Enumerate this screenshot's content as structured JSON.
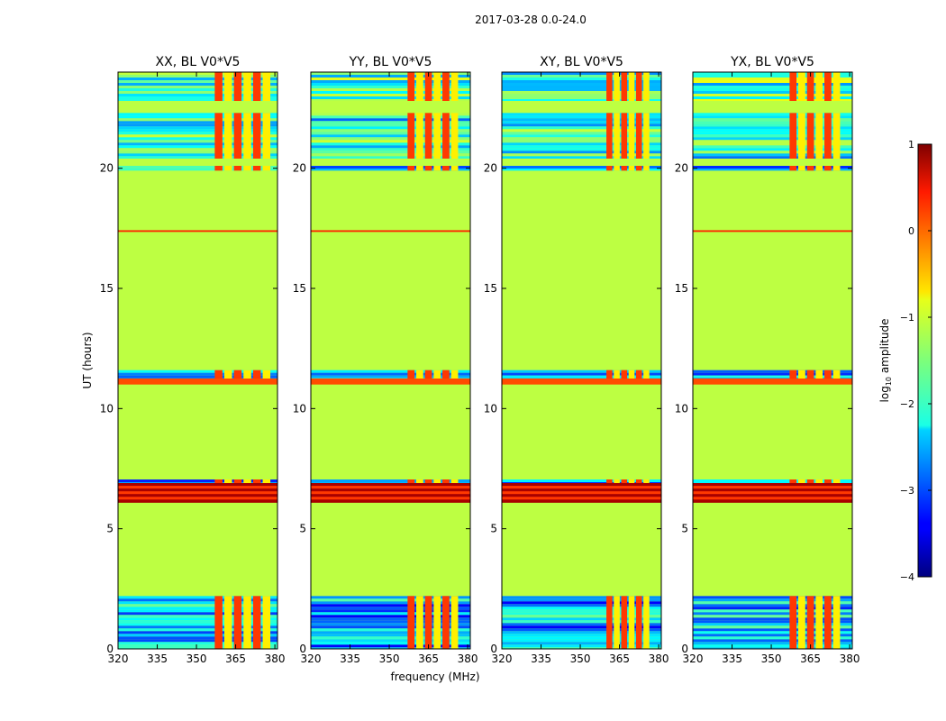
{
  "figure": {
    "suptitle": "2017-03-28 0.0-24.0",
    "xlabel": "frequency (MHz)",
    "ylabel": "UT (hours)"
  },
  "chart_data": [
    {
      "type": "heatmap",
      "title": "XX, BL V0*V5",
      "xlim": [
        320,
        381
      ],
      "ylim": [
        0,
        24
      ],
      "xticks": [
        320,
        335,
        350,
        365,
        380
      ],
      "yticks": [
        0,
        5,
        10,
        15,
        20
      ],
      "rfi_band_mhz": [
        357,
        379
      ],
      "background_log10_amplitude": -1.2,
      "bands": [
        {
          "from": 0.0,
          "to": 2.2,
          "log10_amplitude": -2.5,
          "kind": "noisy",
          "rfi": true
        },
        {
          "from": 6.1,
          "to": 6.9,
          "log10_amplitude": 0.8,
          "kind": "strong"
        },
        {
          "from": 6.9,
          "to": 7.05,
          "log10_amplitude": -2.5,
          "kind": "noisy",
          "rfi": true
        },
        {
          "from": 11.0,
          "to": 11.25,
          "log10_amplitude": 0.0,
          "kind": "flat"
        },
        {
          "from": 11.25,
          "to": 11.6,
          "log10_amplitude": -2.5,
          "kind": "noisy",
          "rfi": true
        },
        {
          "from": 17.35,
          "to": 17.42,
          "log10_amplitude": 0.2,
          "kind": "line"
        },
        {
          "from": 19.9,
          "to": 20.1,
          "log10_amplitude": -2.5,
          "kind": "noisy",
          "rfi": true
        },
        {
          "from": 20.4,
          "to": 22.3,
          "log10_amplitude": -2.0,
          "kind": "noisy",
          "rfi": true
        },
        {
          "from": 22.8,
          "to": 24.0,
          "log10_amplitude": -1.8,
          "kind": "noisy",
          "rfi": true
        }
      ]
    },
    {
      "type": "heatmap",
      "title": "YY, BL V0*V5",
      "xlim": [
        320,
        381
      ],
      "ylim": [
        0,
        24
      ],
      "xticks": [
        320,
        335,
        350,
        365,
        380
      ],
      "yticks": [
        0,
        5,
        10,
        15,
        20
      ],
      "rfi_band_mhz": [
        357,
        377
      ],
      "background_log10_amplitude": -1.2,
      "bands": [
        {
          "from": 0.0,
          "to": 2.2,
          "log10_amplitude": -2.5,
          "kind": "noisy",
          "rfi": true
        },
        {
          "from": 6.1,
          "to": 6.9,
          "log10_amplitude": 0.8,
          "kind": "strong"
        },
        {
          "from": 6.9,
          "to": 7.05,
          "log10_amplitude": -2.5,
          "kind": "noisy",
          "rfi": true
        },
        {
          "from": 11.0,
          "to": 11.25,
          "log10_amplitude": 0.0,
          "kind": "flat"
        },
        {
          "from": 11.25,
          "to": 11.6,
          "log10_amplitude": -2.5,
          "kind": "noisy",
          "rfi": true
        },
        {
          "from": 17.35,
          "to": 17.42,
          "log10_amplitude": 0.2,
          "kind": "line"
        },
        {
          "from": 19.9,
          "to": 20.1,
          "log10_amplitude": -2.5,
          "kind": "noisy",
          "rfi": true
        },
        {
          "from": 20.4,
          "to": 22.3,
          "log10_amplitude": -2.0,
          "kind": "noisy",
          "rfi": true
        },
        {
          "from": 22.8,
          "to": 24.0,
          "log10_amplitude": -1.8,
          "kind": "noisy",
          "rfi": true
        }
      ]
    },
    {
      "type": "heatmap",
      "title": "XY, BL V0*V5",
      "xlim": [
        320,
        381
      ],
      "ylim": [
        0,
        24
      ],
      "xticks": [
        320,
        335,
        350,
        365,
        380
      ],
      "yticks": [
        0,
        5,
        10,
        15,
        20
      ],
      "rfi_band_mhz": [
        360,
        377
      ],
      "background_log10_amplitude": -1.2,
      "bands": [
        {
          "from": 0.0,
          "to": 2.2,
          "log10_amplitude": -2.5,
          "kind": "noisy",
          "rfi": true
        },
        {
          "from": 6.1,
          "to": 6.9,
          "log10_amplitude": 0.8,
          "kind": "strong"
        },
        {
          "from": 6.9,
          "to": 7.05,
          "log10_amplitude": -2.5,
          "kind": "noisy",
          "rfi": true
        },
        {
          "from": 11.0,
          "to": 11.25,
          "log10_amplitude": 0.0,
          "kind": "flat"
        },
        {
          "from": 11.25,
          "to": 11.6,
          "log10_amplitude": -2.5,
          "kind": "noisy",
          "rfi": true
        },
        {
          "from": 19.9,
          "to": 20.1,
          "log10_amplitude": -2.5,
          "kind": "noisy",
          "rfi": true
        },
        {
          "from": 20.4,
          "to": 22.3,
          "log10_amplitude": -2.0,
          "kind": "noisy",
          "rfi": true
        },
        {
          "from": 22.8,
          "to": 24.0,
          "log10_amplitude": -1.8,
          "kind": "noisy",
          "rfi": true
        }
      ]
    },
    {
      "type": "heatmap",
      "title": "YX, BL V0*V5",
      "xlim": [
        320,
        381
      ],
      "ylim": [
        0,
        24
      ],
      "xticks": [
        320,
        335,
        350,
        365,
        380
      ],
      "yticks": [
        0,
        5,
        10,
        15,
        20
      ],
      "rfi_band_mhz": [
        357,
        377
      ],
      "background_log10_amplitude": -1.2,
      "bands": [
        {
          "from": 0.0,
          "to": 2.2,
          "log10_amplitude": -2.5,
          "kind": "noisy",
          "rfi": true
        },
        {
          "from": 6.1,
          "to": 6.9,
          "log10_amplitude": 0.8,
          "kind": "strong"
        },
        {
          "from": 6.9,
          "to": 7.05,
          "log10_amplitude": -2.5,
          "kind": "noisy",
          "rfi": true
        },
        {
          "from": 11.0,
          "to": 11.25,
          "log10_amplitude": 0.0,
          "kind": "flat"
        },
        {
          "from": 11.25,
          "to": 11.6,
          "log10_amplitude": -2.5,
          "kind": "noisy",
          "rfi": true
        },
        {
          "from": 17.35,
          "to": 17.42,
          "log10_amplitude": 0.2,
          "kind": "line"
        },
        {
          "from": 19.9,
          "to": 20.1,
          "log10_amplitude": -2.5,
          "kind": "noisy",
          "rfi": true
        },
        {
          "from": 20.4,
          "to": 22.3,
          "log10_amplitude": -2.0,
          "kind": "noisy",
          "rfi": true
        },
        {
          "from": 22.8,
          "to": 24.0,
          "log10_amplitude": -1.8,
          "kind": "noisy",
          "rfi": true
        }
      ]
    }
  ],
  "colorbar": {
    "label": "log10 amplitude",
    "label_base": "log",
    "label_sub": "10",
    "label_rest": " amplitude",
    "range": [
      -4,
      1
    ],
    "ticks": [
      1,
      0,
      -1,
      -2,
      -3,
      -4
    ],
    "tick_labels": [
      "1",
      "0",
      "−1",
      "−2",
      "−3",
      "−4"
    ],
    "colormap": "jet"
  }
}
